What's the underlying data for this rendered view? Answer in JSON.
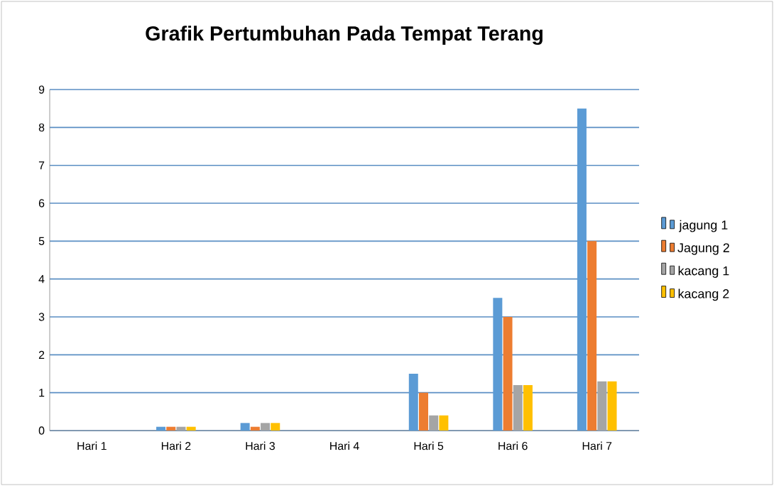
{
  "chart_data": {
    "type": "bar",
    "title": "Grafik Pertumbuhan Pada Tempat Terang",
    "categories": [
      "Hari 1",
      "Hari 2",
      "Hari 3",
      "Hari 4",
      "Hari 5",
      "Hari 6",
      "Hari 7"
    ],
    "series": [
      {
        "name": "jagung 1",
        "color": "#5b9bd5",
        "values": [
          0,
          0.1,
          0.2,
          0,
          1.5,
          3.5,
          8.5
        ]
      },
      {
        "name": "Jagung 2",
        "color": "#ed7d31",
        "values": [
          0,
          0.1,
          0.1,
          0,
          1.0,
          3.0,
          5.0
        ]
      },
      {
        "name": "kacang 1",
        "color": "#a5a5a5",
        "values": [
          0,
          0.1,
          0.2,
          0,
          0.4,
          1.2,
          1.3
        ]
      },
      {
        "name": "kacang 2",
        "color": "#ffc000",
        "values": [
          0,
          0.1,
          0.2,
          0,
          0.4,
          1.2,
          1.3
        ]
      }
    ],
    "ylim": [
      0,
      9
    ],
    "yticks": [
      0,
      1,
      2,
      3,
      4,
      5,
      6,
      7,
      8,
      9
    ],
    "grid": "y",
    "legend": "right"
  }
}
